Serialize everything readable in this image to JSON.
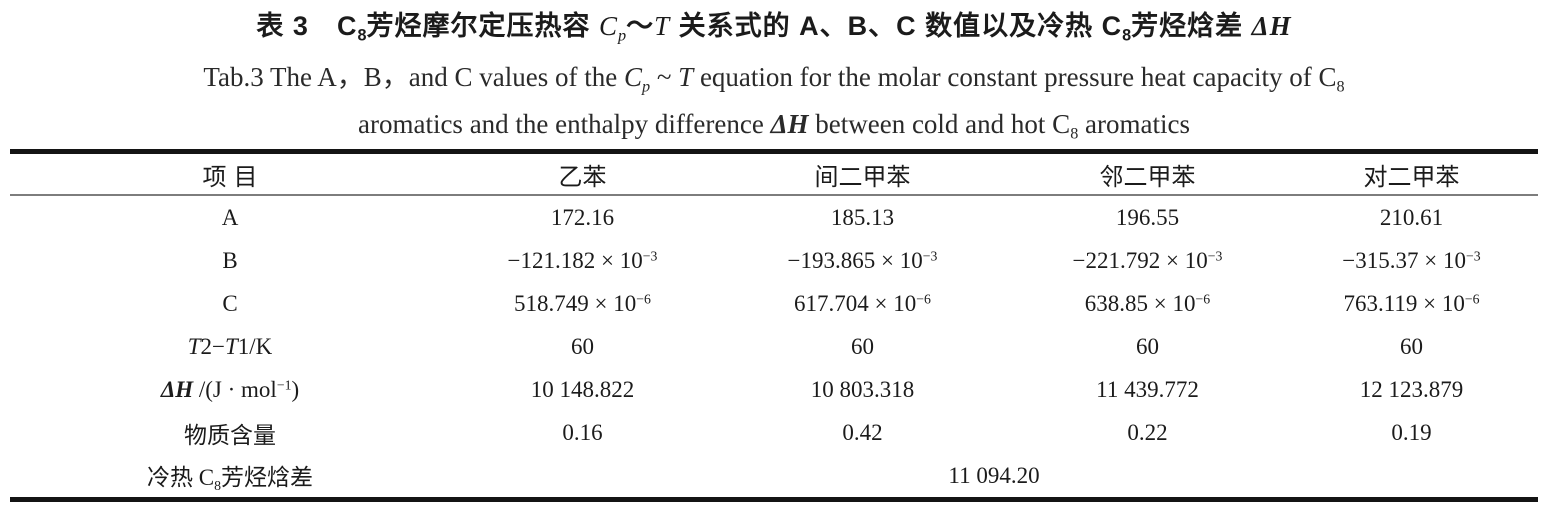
{
  "title": {
    "zh": [
      {
        "t": "表 3　"
      },
      {
        "t": "C"
      },
      {
        "t": "8",
        "sub": true
      },
      {
        "t": "芳烃摩尔定压热容 "
      },
      {
        "t": "C",
        "i": true
      },
      {
        "t": "p",
        "i": true,
        "sub": true
      },
      {
        "t": "～"
      },
      {
        "t": "T",
        "i": true
      },
      {
        "t": " 关系式的 A、B、C 数值以及冷热 C"
      },
      {
        "t": "8",
        "sub": true
      },
      {
        "t": "芳烃焓差 "
      },
      {
        "t": "ΔH",
        "i": true,
        "b": true
      }
    ],
    "en1": [
      {
        "t": "Tab.3  The A，B，and C values of the "
      },
      {
        "t": "C",
        "i": true
      },
      {
        "t": "p",
        "i": true,
        "sub": true
      },
      {
        "t": " ~ "
      },
      {
        "t": "T",
        "i": true
      },
      {
        "t": "  equation for the molar constant pressure heat capacity of C"
      },
      {
        "t": "8",
        "sub": true
      }
    ],
    "en2": [
      {
        "t": "aromatics and the enthalpy difference  "
      },
      {
        "t": "ΔH",
        "i": true,
        "b": true
      },
      {
        "t": "  between cold and hot C"
      },
      {
        "t": "8",
        "sub": true
      },
      {
        "t": " aromatics"
      }
    ]
  },
  "table": {
    "columns": [
      "项目",
      "乙苯",
      "间二甲苯",
      "邻二甲苯",
      "对二甲苯"
    ],
    "rows": [
      {
        "label": "A",
        "cells": [
          "172.16",
          "185.13",
          "196.55",
          "210.61"
        ]
      },
      {
        "label": "B",
        "cells": [
          [
            {
              "t": "−121.182 × 10"
            },
            {
              "t": "−3",
              "sup": true
            }
          ],
          [
            {
              "t": "−193.865 × 10"
            },
            {
              "t": "−3",
              "sup": true
            }
          ],
          [
            {
              "t": "−221.792 × 10"
            },
            {
              "t": "−3",
              "sup": true
            }
          ],
          [
            {
              "t": "−315.37 × 10"
            },
            {
              "t": "−3",
              "sup": true
            }
          ]
        ]
      },
      {
        "label": "C",
        "cells": [
          [
            {
              "t": "518.749 × 10"
            },
            {
              "t": "−6",
              "sup": true
            }
          ],
          [
            {
              "t": "617.704 × 10"
            },
            {
              "t": "−6",
              "sup": true
            }
          ],
          [
            {
              "t": "638.85 × 10"
            },
            {
              "t": "−6",
              "sup": true
            }
          ],
          [
            {
              "t": "763.119 × 10"
            },
            {
              "t": "−6",
              "sup": true
            }
          ]
        ]
      },
      {
        "label": [
          {
            "t": "T",
            "i": true
          },
          {
            "t": "2−"
          },
          {
            "t": "T",
            "i": true
          },
          {
            "t": "1/K"
          }
        ],
        "cells": [
          "60",
          "60",
          "60",
          "60"
        ]
      },
      {
        "label": [
          {
            "t": "ΔH",
            "i": true,
            "b": true
          },
          {
            "t": " /(J · mol"
          },
          {
            "t": "−1",
            "sup": true
          },
          {
            "t": ")"
          }
        ],
        "cells": [
          "10 148.822",
          "10 803.318",
          "11 439.772",
          "12 123.879"
        ]
      },
      {
        "label": "物质含量",
        "cells": [
          "0.16",
          "0.42",
          "0.22",
          "0.19"
        ]
      }
    ],
    "merged_row": {
      "label": [
        {
          "t": "冷热 C"
        },
        {
          "t": "8",
          "sub": true
        },
        {
          "t": "芳烃焓差"
        }
      ],
      "value": "11 094.20"
    }
  },
  "colors": {
    "background": "#ffffff",
    "text": "#1b1b1b",
    "heavy_rule": "#141414",
    "light_rule": "#7d7d7d"
  }
}
